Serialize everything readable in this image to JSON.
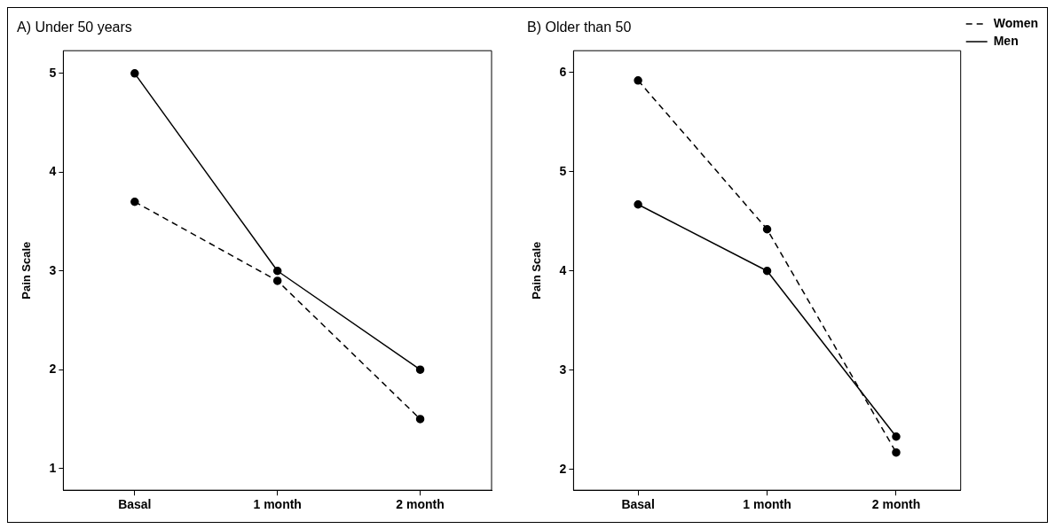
{
  "chart_data": [
    {
      "type": "line",
      "title": "A) Under 50 years",
      "ylabel": "Pain Scale",
      "categories": [
        "Basal",
        "1 month",
        "2 month"
      ],
      "ylim": [
        0.78,
        5.23
      ],
      "yticks": [
        1,
        2,
        3,
        4,
        5
      ],
      "grid": false,
      "legend": false,
      "marker": "circle",
      "series": [
        {
          "color": "#000000",
          "line_style": "dashed",
          "values": [
            3.7,
            2.9,
            1.5
          ]
        },
        {
          "color": "#000000",
          "line_style": "solid",
          "values": [
            5,
            3,
            2
          ]
        }
      ]
    },
    {
      "type": "line",
      "title": "B) Older than 50",
      "ylabel": "Pain Scale",
      "categories": [
        "Basal",
        "1 month",
        "2 month"
      ],
      "ylim": [
        1.79,
        6.22
      ],
      "yticks": [
        2,
        3,
        4,
        5,
        6
      ],
      "grid": false,
      "legend": "top right",
      "marker": "circle",
      "series": [
        {
          "name": "Women",
          "color": "#000000",
          "line_style": "dashed",
          "values": [
            5.92,
            4.42,
            2.17
          ]
        },
        {
          "name": "Men",
          "color": "#000000",
          "line_style": "solid",
          "values": [
            4.67,
            4.0,
            2.33
          ]
        }
      ]
    }
  ]
}
